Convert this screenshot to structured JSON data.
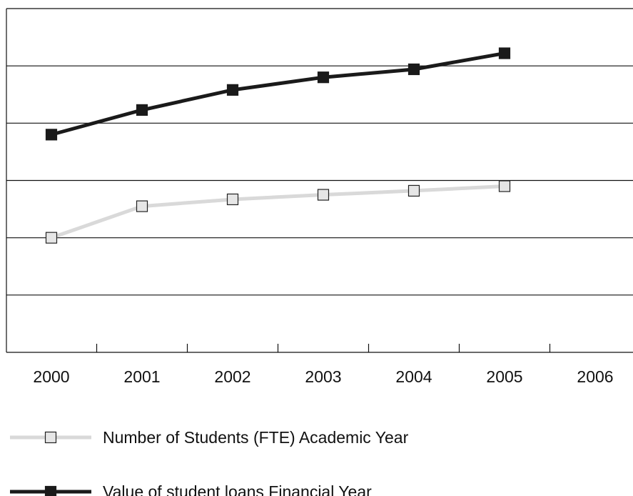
{
  "chart_data": {
    "type": "line",
    "title": "",
    "xlabel": "",
    "ylabel": "",
    "categories": [
      "2000",
      "2001",
      "2002",
      "2003",
      "2004",
      "2005",
      "2006"
    ],
    "ylim": [
      0,
      6
    ],
    "grid": true,
    "y_tick_labels_shown": false,
    "legend_position": "bottom",
    "series": [
      {
        "name": "Number of Students (FTE) Academic Year",
        "values": [
          2.0,
          2.55,
          2.67,
          2.75,
          2.82,
          2.9,
          null
        ],
        "line_color": "#d9d9d9",
        "marker": "square-open",
        "marker_fill": "#e6e6e6",
        "marker_stroke": "#222222"
      },
      {
        "name": "Value of student loans Financial Year",
        "values": [
          3.8,
          4.23,
          4.58,
          4.8,
          4.94,
          5.22,
          null
        ],
        "line_color": "#1a1a1a",
        "marker": "square-filled",
        "marker_fill": "#1a1a1a",
        "marker_stroke": "#1a1a1a"
      }
    ]
  }
}
